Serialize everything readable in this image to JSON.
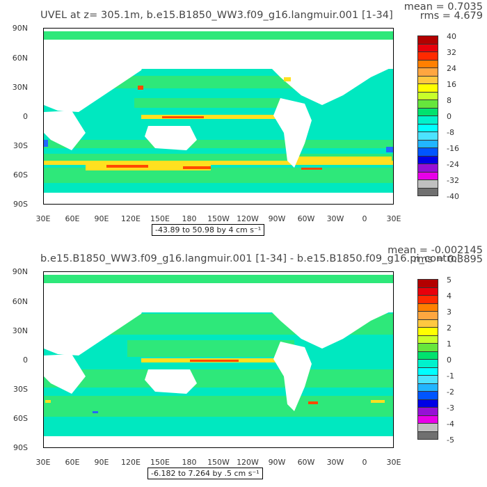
{
  "panels": [
    {
      "title": "UVEL at z= 305.1m, b.e15.B1850_WW3.f09_g16.langmuir.001 [1-34]",
      "mean": "mean = 0.7035",
      "rms": "rms = 4.679",
      "range": "-43.89 to 50.98 by 4 cm s⁻¹",
      "colorbar_labels": [
        "40",
        "32",
        "24",
        "16",
        "8",
        "0",
        "-8",
        "-16",
        "-24",
        "-32",
        "-40"
      ]
    },
    {
      "title": "b.e15.B1850_WW3.f09_g16.langmuir.001 [1-34] - b.e15.B1850.f09_g16.pi_control",
      "mean": "mean = -0.002145",
      "rms": "rms = 0.3895",
      "range": "-6.182 to 7.264 by .5 cm s⁻¹",
      "colorbar_labels": [
        "5",
        "4",
        "3",
        "2",
        "1",
        "0",
        "-1",
        "-2",
        "-3",
        "-4",
        "-5"
      ]
    }
  ],
  "lat_labels": [
    "90N",
    "60N",
    "30N",
    "0",
    "30S",
    "60S",
    "90S"
  ],
  "lon_labels": [
    "30E",
    "60E",
    "90E",
    "120E",
    "150E",
    "180",
    "150W",
    "120W",
    "90W",
    "60W",
    "30W",
    "0",
    "30E"
  ],
  "colorbar_colors": [
    "#b30000",
    "#e8000b",
    "#ff2a00",
    "#ff7f00",
    "#ffa640",
    "#ffc840",
    "#ffff00",
    "#c8ff2a",
    "#66e63c",
    "#00e26e",
    "#00f2cc",
    "#00ffff",
    "#4ce3ff",
    "#22b5ff",
    "#0055ff",
    "#0000e6",
    "#9610d6",
    "#e800e8",
    "#c0c0c0",
    "#707070"
  ],
  "map_colors": {
    "ocean_main": "#00e8c0",
    "ocean_band": "#2ee87a",
    "land": "#ffffff",
    "warm": "#ffe020",
    "hot": "#ff4a00",
    "cold": "#2468ff"
  }
}
